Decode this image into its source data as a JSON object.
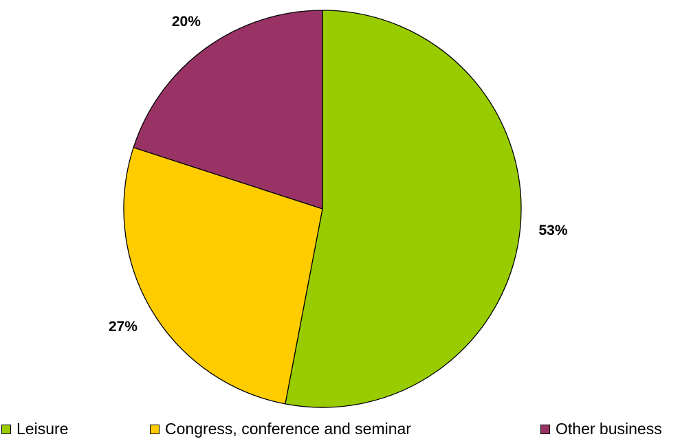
{
  "chart_data": {
    "type": "pie",
    "title": "",
    "start_angle_deg": 0,
    "direction": "clockwise",
    "legend_position": "bottom",
    "slices": [
      {
        "label": "Leisure",
        "value": 53,
        "display": "53%",
        "color": "#99CC00"
      },
      {
        "label": "Congress, conference and seminar",
        "value": 27,
        "display": "27%",
        "color": "#FFCC00"
      },
      {
        "label": "Other business",
        "value": 20,
        "display": "20%",
        "color": "#993366"
      }
    ]
  }
}
